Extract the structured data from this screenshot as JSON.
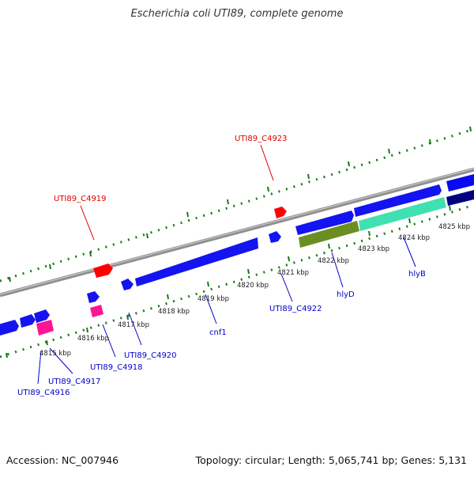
{
  "title": "Escherichia coli UTI89, complete genome",
  "footer": {
    "accession": "Accession: NC_007946",
    "summary": "Topology: circular; Length: 5,065,741 bp; Genes: 5,131"
  },
  "colors": {
    "backbone": "#8a8a8a",
    "tick": "#1a7a1a",
    "forward_gene": "#0a0af0",
    "reverse_gene": "#1414f0",
    "label_blue": "#0000cc",
    "label_red": "#dd0000",
    "red_feature": "#ff0000",
    "pink_feature": "#ff1493",
    "olive_feature": "#6b8e23",
    "aqua_feature": "#40e0b0",
    "navy_feature": "#000080"
  },
  "scale_labels": [
    "4815 kbp",
    "4816 kbp",
    "4817 kbp",
    "4818 kbp",
    "4819 kbp",
    "4820 kbp",
    "4821 kbp",
    "4822 kbp",
    "4823 kbp",
    "4824 kbp",
    "4825 kbp"
  ],
  "gene_labels": [
    {
      "text": "UTI89_C4916",
      "color": "blue"
    },
    {
      "text": "UTI89_C4917",
      "color": "blue"
    },
    {
      "text": "UTI89_C4918",
      "color": "blue"
    },
    {
      "text": "UTI89_C4920",
      "color": "blue"
    },
    {
      "text": "cnf1",
      "color": "blue"
    },
    {
      "text": "UTI89_C4922",
      "color": "blue"
    },
    {
      "text": "hlyD",
      "color": "blue"
    },
    {
      "text": "hlyB",
      "color": "blue"
    },
    {
      "text": "UTI89_C4919",
      "color": "red"
    },
    {
      "text": "UTI89_C4923",
      "color": "red"
    }
  ]
}
